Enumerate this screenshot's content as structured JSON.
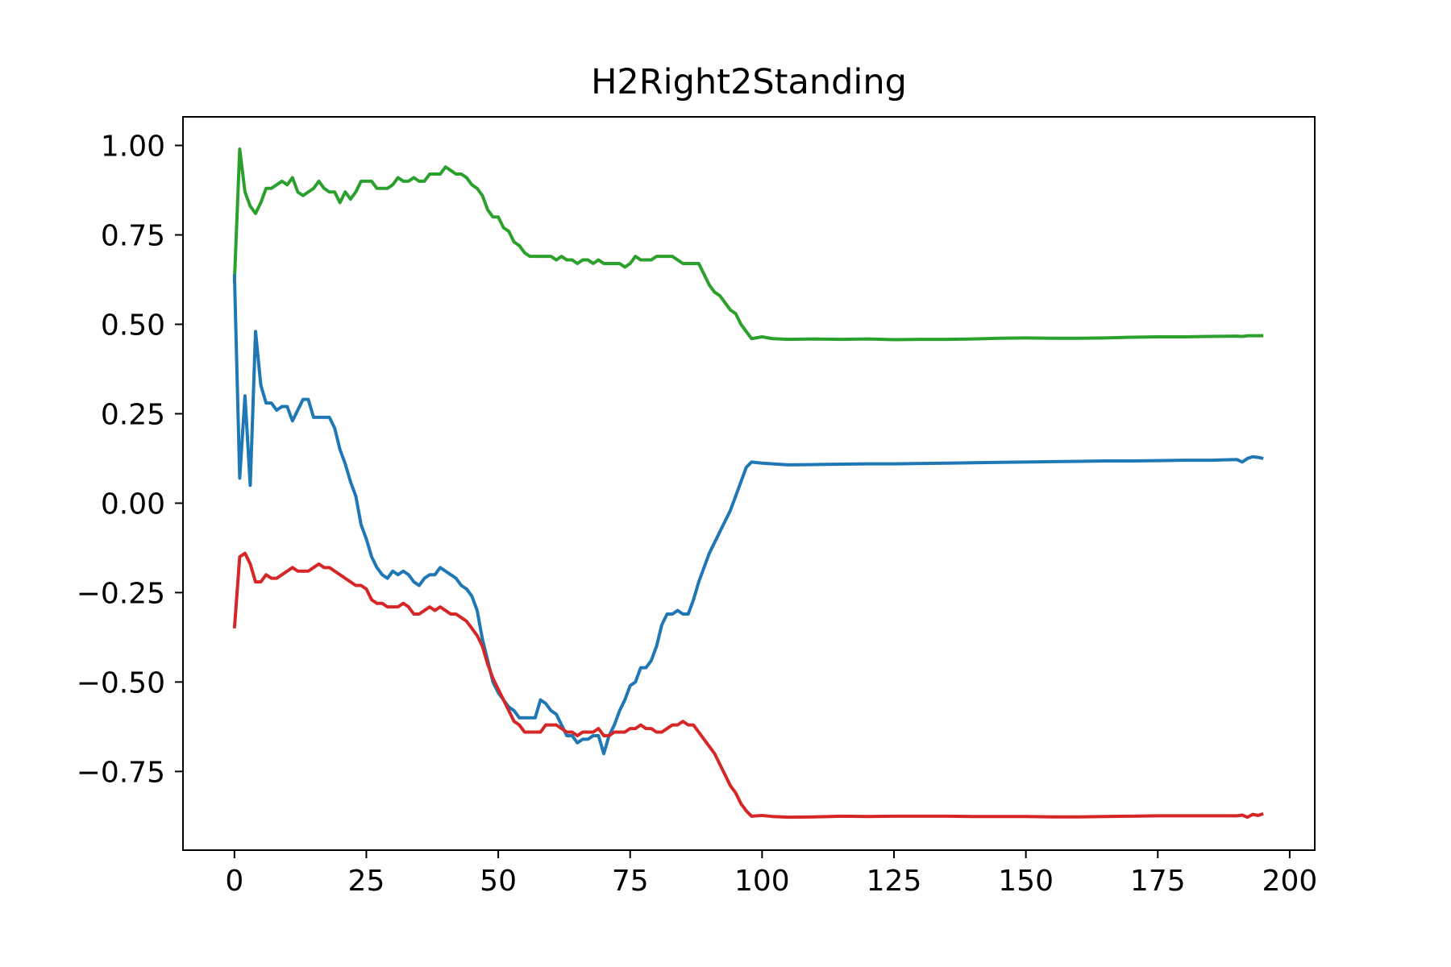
{
  "chart_data": {
    "type": "line",
    "title": "H2Right2Standing",
    "xlabel": "",
    "ylabel": "",
    "xlim": [
      -9.75,
      204.75
    ],
    "ylim": [
      -0.97,
      1.08
    ],
    "xticks": [
      0,
      25,
      50,
      75,
      100,
      125,
      150,
      175,
      200
    ],
    "xtick_labels": [
      "0",
      "25",
      "50",
      "75",
      "100",
      "125",
      "150",
      "175",
      "200"
    ],
    "yticks": [
      1.0,
      0.75,
      0.5,
      0.25,
      0.0,
      -0.25,
      -0.5,
      -0.75
    ],
    "ytick_labels": [
      "1.00",
      "0.75",
      "0.50",
      "0.25",
      "0.00",
      "−0.25",
      "−0.50",
      "−0.75"
    ],
    "grid": false,
    "series": [
      {
        "color": "#2ca02c",
        "x": [
          0,
          1,
          2,
          3,
          4,
          5,
          6,
          7,
          8,
          9,
          10,
          11,
          12,
          13,
          14,
          15,
          16,
          17,
          18,
          19,
          20,
          21,
          22,
          23,
          24,
          25,
          26,
          27,
          28,
          29,
          30,
          31,
          32,
          33,
          34,
          35,
          36,
          37,
          38,
          39,
          40,
          41,
          42,
          43,
          44,
          45,
          46,
          47,
          48,
          49,
          50,
          51,
          52,
          53,
          54,
          55,
          56,
          57,
          58,
          59,
          60,
          61,
          62,
          63,
          64,
          65,
          66,
          67,
          68,
          69,
          70,
          71,
          72,
          73,
          74,
          75,
          76,
          77,
          78,
          79,
          80,
          81,
          82,
          83,
          84,
          85,
          86,
          87,
          88,
          89,
          90,
          91,
          92,
          93,
          94,
          95,
          96,
          97,
          98,
          100,
          102,
          105,
          110,
          115,
          120,
          125,
          130,
          135,
          140,
          145,
          150,
          155,
          160,
          165,
          170,
          175,
          180,
          185,
          190,
          191,
          192,
          193,
          194,
          195
        ],
        "y": [
          0.62,
          0.99,
          0.87,
          0.83,
          0.81,
          0.84,
          0.88,
          0.88,
          0.89,
          0.9,
          0.89,
          0.91,
          0.87,
          0.86,
          0.87,
          0.88,
          0.9,
          0.88,
          0.87,
          0.87,
          0.84,
          0.87,
          0.85,
          0.87,
          0.9,
          0.9,
          0.9,
          0.88,
          0.88,
          0.88,
          0.89,
          0.91,
          0.9,
          0.9,
          0.91,
          0.9,
          0.9,
          0.92,
          0.92,
          0.92,
          0.94,
          0.93,
          0.92,
          0.92,
          0.91,
          0.89,
          0.88,
          0.86,
          0.82,
          0.8,
          0.8,
          0.77,
          0.76,
          0.73,
          0.72,
          0.7,
          0.69,
          0.69,
          0.69,
          0.69,
          0.69,
          0.68,
          0.69,
          0.68,
          0.68,
          0.67,
          0.68,
          0.68,
          0.67,
          0.68,
          0.67,
          0.67,
          0.67,
          0.67,
          0.66,
          0.67,
          0.69,
          0.68,
          0.68,
          0.68,
          0.69,
          0.69,
          0.69,
          0.69,
          0.68,
          0.67,
          0.67,
          0.67,
          0.67,
          0.64,
          0.61,
          0.59,
          0.58,
          0.56,
          0.54,
          0.53,
          0.5,
          0.48,
          0.46,
          0.465,
          0.46,
          0.458,
          0.459,
          0.458,
          0.459,
          0.457,
          0.458,
          0.458,
          0.459,
          0.461,
          0.462,
          0.461,
          0.461,
          0.462,
          0.464,
          0.465,
          0.465,
          0.466,
          0.467,
          0.466,
          0.468,
          0.468,
          0.468,
          0.468
        ]
      },
      {
        "color": "#1f77b4",
        "x": [
          0,
          1,
          2,
          3,
          4,
          5,
          6,
          7,
          8,
          9,
          10,
          11,
          12,
          13,
          14,
          15,
          16,
          17,
          18,
          19,
          20,
          21,
          22,
          23,
          24,
          25,
          26,
          27,
          28,
          29,
          30,
          31,
          32,
          33,
          34,
          35,
          36,
          37,
          38,
          39,
          40,
          41,
          42,
          43,
          44,
          45,
          46,
          47,
          48,
          49,
          50,
          51,
          52,
          53,
          54,
          55,
          56,
          57,
          58,
          59,
          60,
          61,
          62,
          63,
          64,
          65,
          66,
          67,
          68,
          69,
          70,
          71,
          72,
          73,
          74,
          75,
          76,
          77,
          78,
          79,
          80,
          81,
          82,
          83,
          84,
          85,
          86,
          87,
          88,
          89,
          90,
          91,
          92,
          93,
          94,
          95,
          96,
          97,
          98,
          100,
          102,
          105,
          110,
          115,
          120,
          125,
          130,
          135,
          140,
          145,
          150,
          155,
          160,
          165,
          170,
          175,
          180,
          185,
          190,
          191,
          192,
          193,
          194,
          195
        ],
        "y": [
          0.64,
          0.07,
          0.3,
          0.05,
          0.48,
          0.33,
          0.28,
          0.28,
          0.26,
          0.27,
          0.27,
          0.23,
          0.26,
          0.29,
          0.29,
          0.24,
          0.24,
          0.24,
          0.24,
          0.21,
          0.15,
          0.11,
          0.06,
          0.02,
          -0.06,
          -0.1,
          -0.15,
          -0.18,
          -0.2,
          -0.21,
          -0.19,
          -0.2,
          -0.19,
          -0.2,
          -0.22,
          -0.23,
          -0.21,
          -0.2,
          -0.2,
          -0.18,
          -0.19,
          -0.2,
          -0.21,
          -0.23,
          -0.24,
          -0.26,
          -0.3,
          -0.38,
          -0.44,
          -0.5,
          -0.53,
          -0.55,
          -0.57,
          -0.58,
          -0.6,
          -0.6,
          -0.6,
          -0.6,
          -0.55,
          -0.56,
          -0.58,
          -0.59,
          -0.62,
          -0.65,
          -0.65,
          -0.67,
          -0.66,
          -0.66,
          -0.65,
          -0.65,
          -0.7,
          -0.65,
          -0.62,
          -0.58,
          -0.55,
          -0.51,
          -0.5,
          -0.46,
          -0.46,
          -0.44,
          -0.4,
          -0.34,
          -0.31,
          -0.31,
          -0.3,
          -0.31,
          -0.31,
          -0.27,
          -0.22,
          -0.18,
          -0.14,
          -0.11,
          -0.08,
          -0.05,
          -0.02,
          0.02,
          0.06,
          0.1,
          0.115,
          0.112,
          0.11,
          0.107,
          0.108,
          0.109,
          0.11,
          0.11,
          0.111,
          0.112,
          0.113,
          0.114,
          0.115,
          0.116,
          0.117,
          0.118,
          0.118,
          0.119,
          0.12,
          0.12,
          0.122,
          0.115,
          0.125,
          0.13,
          0.128,
          0.125
        ]
      },
      {
        "color": "#d62728",
        "x": [
          0,
          1,
          2,
          3,
          4,
          5,
          6,
          7,
          8,
          9,
          10,
          11,
          12,
          13,
          14,
          15,
          16,
          17,
          18,
          19,
          20,
          21,
          22,
          23,
          24,
          25,
          26,
          27,
          28,
          29,
          30,
          31,
          32,
          33,
          34,
          35,
          36,
          37,
          38,
          39,
          40,
          41,
          42,
          43,
          44,
          45,
          46,
          47,
          48,
          49,
          50,
          51,
          52,
          53,
          54,
          55,
          56,
          57,
          58,
          59,
          60,
          61,
          62,
          63,
          64,
          65,
          66,
          67,
          68,
          69,
          70,
          71,
          72,
          73,
          74,
          75,
          76,
          77,
          78,
          79,
          80,
          81,
          82,
          83,
          84,
          85,
          86,
          87,
          88,
          89,
          90,
          91,
          92,
          93,
          94,
          95,
          96,
          97,
          98,
          100,
          102,
          105,
          110,
          115,
          120,
          125,
          130,
          135,
          140,
          145,
          150,
          155,
          160,
          165,
          170,
          175,
          180,
          185,
          190,
          191,
          192,
          193,
          194,
          195
        ],
        "y": [
          -0.35,
          -0.15,
          -0.14,
          -0.17,
          -0.22,
          -0.22,
          -0.2,
          -0.21,
          -0.21,
          -0.2,
          -0.19,
          -0.18,
          -0.19,
          -0.19,
          -0.19,
          -0.18,
          -0.17,
          -0.18,
          -0.18,
          -0.19,
          -0.2,
          -0.21,
          -0.22,
          -0.23,
          -0.23,
          -0.24,
          -0.27,
          -0.28,
          -0.28,
          -0.29,
          -0.29,
          -0.29,
          -0.28,
          -0.29,
          -0.31,
          -0.31,
          -0.3,
          -0.29,
          -0.3,
          -0.29,
          -0.3,
          -0.31,
          -0.31,
          -0.32,
          -0.33,
          -0.35,
          -0.37,
          -0.4,
          -0.45,
          -0.49,
          -0.52,
          -0.55,
          -0.58,
          -0.61,
          -0.62,
          -0.64,
          -0.64,
          -0.64,
          -0.64,
          -0.62,
          -0.62,
          -0.62,
          -0.63,
          -0.64,
          -0.64,
          -0.65,
          -0.64,
          -0.64,
          -0.64,
          -0.63,
          -0.65,
          -0.65,
          -0.64,
          -0.64,
          -0.64,
          -0.63,
          -0.63,
          -0.62,
          -0.63,
          -0.63,
          -0.64,
          -0.64,
          -0.63,
          -0.62,
          -0.62,
          -0.61,
          -0.62,
          -0.62,
          -0.64,
          -0.66,
          -0.68,
          -0.7,
          -0.73,
          -0.76,
          -0.79,
          -0.81,
          -0.84,
          -0.86,
          -0.875,
          -0.873,
          -0.876,
          -0.878,
          -0.877,
          -0.875,
          -0.876,
          -0.875,
          -0.875,
          -0.875,
          -0.876,
          -0.876,
          -0.876,
          -0.877,
          -0.877,
          -0.876,
          -0.875,
          -0.874,
          -0.874,
          -0.874,
          -0.874,
          -0.872,
          -0.878,
          -0.87,
          -0.873,
          -0.868
        ]
      }
    ]
  }
}
